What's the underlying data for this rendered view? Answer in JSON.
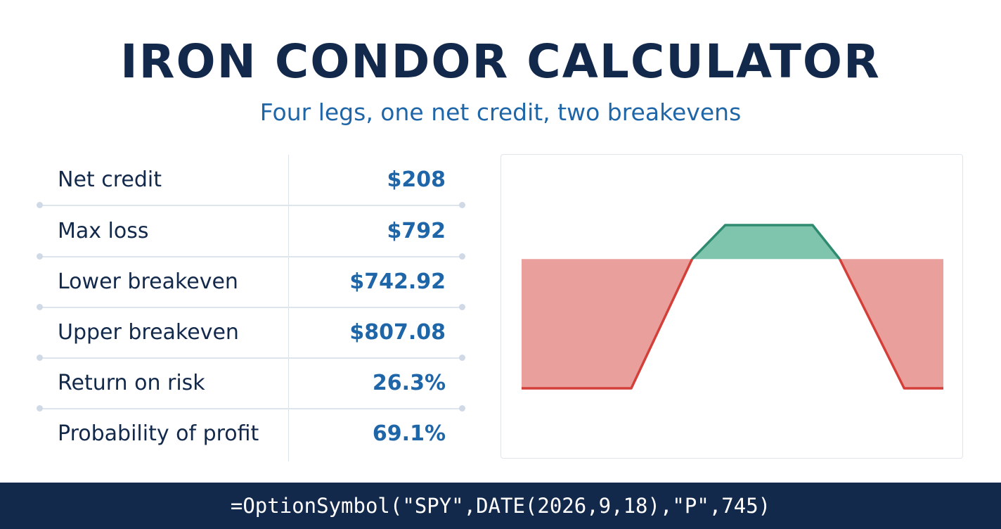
{
  "header": {
    "title": "IRON CONDOR CALCULATOR",
    "subtitle": "Four legs, one net credit, two breakevens"
  },
  "stats": [
    {
      "label": "Net credit",
      "value": "$208"
    },
    {
      "label": "Max loss",
      "value": "$792"
    },
    {
      "label": "Lower breakeven",
      "value": "$742.92"
    },
    {
      "label": "Upper breakeven",
      "value": "$807.08"
    },
    {
      "label": "Return on risk",
      "value": "26.3%"
    },
    {
      "label": "Probability of profit",
      "value": "69.1%"
    }
  ],
  "chart_data": {
    "type": "area",
    "title": "",
    "xlabel": "",
    "ylabel": "",
    "grid": false,
    "series": [
      {
        "x": [
          0,
          1.8,
          2.8,
          4.3,
          5.3,
          7.0
        ],
        "values": [
          -792,
          -792,
          0,
          208,
          0,
          -792
        ]
      }
    ],
    "plot_points": [
      {
        "x": 0.0,
        "y": -792
      },
      {
        "x": 1.8,
        "y": -792
      },
      {
        "x": 2.8,
        "y": 0
      },
      {
        "x": 4.3,
        "y": 208
      },
      {
        "x": 5.3,
        "y": 0
      },
      {
        "x": 7.0,
        "y": -792
      }
    ],
    "key_points": [
      {
        "x": 0.0,
        "y": -792
      },
      {
        "x": 1.82,
        "y": -792
      },
      {
        "x": 2.83,
        "y": 0
      },
      {
        "x": 3.38,
        "y": 208
      },
      {
        "x": 4.83,
        "y": 208
      },
      {
        "x": 5.28,
        "y": 0
      },
      {
        "x": 6.35,
        "y": -792
      },
      {
        "x": 7.0,
        "y": -792
      }
    ],
    "xlim": [
      0,
      7.0
    ],
    "ylim": [
      -792,
      208
    ],
    "colors": {
      "profit_fill": "#7fc4ad",
      "profit_line": "#2e8b70",
      "loss_fill": "#e9a09c",
      "loss_line": "#d43f3a"
    }
  },
  "footer": {
    "formula": "=OptionSymbol(\"SPY\",DATE(2026,9,18),\"P\",745)"
  }
}
